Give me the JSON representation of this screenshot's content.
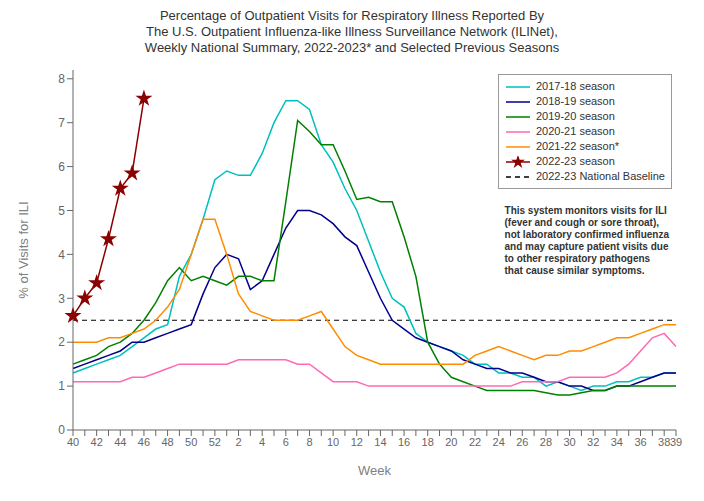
{
  "chart_data": {
    "type": "line",
    "title": "Percentage of Outpatient Visits for Respiratory Illness Reported By\nThe U.S. Outpatient Influenza-like Illness Surveillance Network (ILINet),\nWeekly National Summary, 2022-2023* and Selected Previous Seasons",
    "x_label": "Week",
    "y_label": "% of Visits for ILI",
    "categories": [
      "40",
      null,
      "42",
      null,
      "44",
      null,
      "46",
      null,
      "48",
      null,
      "50",
      null,
      "52",
      null,
      "2",
      null,
      "4",
      null,
      "6",
      null,
      "8",
      null,
      "10",
      null,
      "12",
      null,
      "14",
      null,
      "16",
      null,
      "18",
      null,
      "20",
      null,
      "22",
      null,
      "24",
      null,
      "26",
      null,
      "28",
      null,
      "30",
      null,
      "32",
      null,
      "34",
      null,
      "36",
      null,
      "38",
      "39"
    ],
    "ylim": [
      0,
      8.2
    ],
    "yticks": [
      0,
      1,
      2,
      3,
      4,
      5,
      6,
      7,
      8
    ],
    "grid": false,
    "legend": "upper right",
    "annotations": [
      "This system monitors visits for ILI\n(fever and cough or sore throat),\nnot laboratory confirmed influenza\nand may capture patient visits due\nto other respiratory pathogens\nthat cause similar symptoms."
    ],
    "series": [
      {
        "name": "2017-18 season",
        "color": "#00BFBF",
        "values": [
          1.3,
          1.4,
          1.5,
          1.6,
          1.7,
          1.9,
          2.1,
          2.3,
          2.4,
          3.5,
          4.0,
          4.8,
          5.7,
          5.9,
          5.8,
          5.8,
          6.3,
          7.0,
          7.5,
          7.5,
          7.3,
          6.5,
          6.1,
          5.5,
          5.0,
          4.3,
          3.6,
          3.0,
          2.8,
          2.2,
          2.0,
          1.9,
          1.8,
          1.7,
          1.5,
          1.5,
          1.3,
          1.3,
          1.2,
          1.2,
          1.0,
          1.1,
          1.0,
          0.9,
          1.0,
          1.0,
          1.1,
          1.1,
          1.2,
          1.2,
          1.3,
          1.3
        ]
      },
      {
        "name": "2018-19 season",
        "color": "#00008B",
        "values": [
          1.4,
          1.5,
          1.6,
          1.7,
          1.8,
          2.0,
          2.0,
          2.1,
          2.2,
          2.3,
          2.4,
          3.1,
          3.7,
          4.0,
          3.9,
          3.2,
          3.4,
          4.0,
          4.6,
          5.0,
          5.0,
          4.9,
          4.7,
          4.4,
          4.2,
          3.6,
          3.0,
          2.5,
          2.3,
          2.1,
          2.0,
          1.9,
          1.8,
          1.6,
          1.5,
          1.4,
          1.4,
          1.3,
          1.3,
          1.2,
          1.1,
          1.1,
          1.0,
          1.0,
          0.9,
          0.9,
          1.0,
          1.0,
          1.1,
          1.2,
          1.3,
          1.3
        ]
      },
      {
        "name": "2019-20 season",
        "color": "#008000",
        "values": [
          1.5,
          1.6,
          1.7,
          1.9,
          2.0,
          2.2,
          2.5,
          2.9,
          3.4,
          3.7,
          3.4,
          3.5,
          3.4,
          3.3,
          3.5,
          3.5,
          3.4,
          3.4,
          5.2,
          7.05,
          6.8,
          6.5,
          6.5,
          5.9,
          5.25,
          5.3,
          5.2,
          5.2,
          4.4,
          3.5,
          2.0,
          1.5,
          1.2,
          1.1,
          1.0,
          0.9,
          0.9,
          0.9,
          0.9,
          0.9,
          0.85,
          0.8,
          0.8,
          0.85,
          0.9,
          0.9,
          1.0,
          1.0,
          1.0,
          1.0,
          1.0,
          1.0
        ]
      },
      {
        "name": "2020-21 season",
        "color": "#FF69B4",
        "values": [
          1.1,
          1.1,
          1.1,
          1.1,
          1.1,
          1.2,
          1.2,
          1.3,
          1.4,
          1.5,
          1.5,
          1.5,
          1.5,
          1.5,
          1.6,
          1.6,
          1.6,
          1.6,
          1.6,
          1.5,
          1.5,
          1.3,
          1.1,
          1.1,
          1.1,
          1.0,
          1.0,
          1.0,
          1.0,
          1.0,
          1.0,
          1.0,
          1.0,
          1.0,
          1.0,
          1.0,
          1.0,
          1.0,
          1.1,
          1.1,
          1.1,
          1.1,
          1.2,
          1.2,
          1.2,
          1.2,
          1.3,
          1.5,
          1.8,
          2.1,
          2.2,
          1.9
        ]
      },
      {
        "name": "2021-22 season*",
        "color": "#FF8C00",
        "values": [
          2.0,
          2.0,
          2.0,
          2.1,
          2.1,
          2.2,
          2.3,
          2.5,
          2.8,
          3.2,
          4.0,
          4.8,
          4.8,
          4.0,
          3.1,
          2.7,
          2.6,
          2.5,
          2.5,
          2.5,
          2.6,
          2.7,
          2.3,
          1.9,
          1.7,
          1.6,
          1.5,
          1.5,
          1.5,
          1.5,
          1.5,
          1.5,
          1.5,
          1.5,
          1.7,
          1.8,
          1.9,
          1.8,
          1.7,
          1.6,
          1.7,
          1.7,
          1.8,
          1.8,
          1.9,
          2.0,
          2.1,
          2.1,
          2.2,
          2.3,
          2.4,
          2.4
        ]
      },
      {
        "name": "2022-23 season",
        "color": "#8B0000",
        "marker": "star",
        "values": [
          2.6,
          3.0,
          3.35,
          4.35,
          5.5,
          5.85,
          7.55,
          null,
          null,
          null,
          null,
          null,
          null,
          null,
          null,
          null,
          null,
          null,
          null,
          null,
          null,
          null,
          null,
          null,
          null,
          null,
          null,
          null,
          null,
          null,
          null,
          null,
          null,
          null,
          null,
          null,
          null,
          null,
          null,
          null,
          null,
          null,
          null,
          null,
          null,
          null,
          null,
          null,
          null,
          null,
          null,
          null
        ]
      }
    ],
    "baseline": {
      "name": "2022-23 National Baseline",
      "value": 2.5,
      "color": "#000000",
      "line_style": "dashed"
    }
  }
}
